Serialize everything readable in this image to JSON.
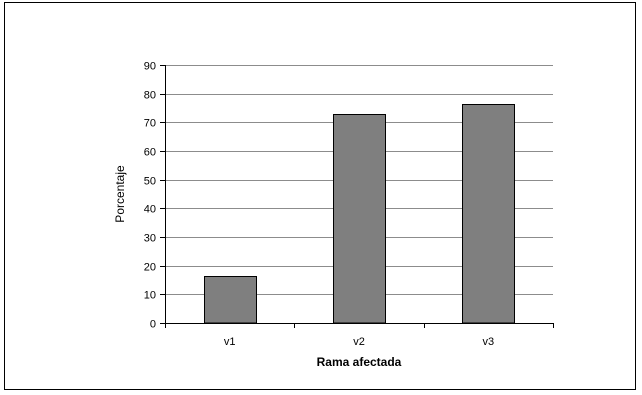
{
  "chart_data": {
    "type": "bar",
    "categories": [
      "v1",
      "v2",
      "v3"
    ],
    "values": [
      16.3,
      72.8,
      76.5
    ],
    "xlabel": "Rama afectada",
    "ylabel": "Porcentaje",
    "ylim": [
      0,
      90
    ],
    "yticks": [
      0,
      10,
      20,
      30,
      40,
      50,
      60,
      70,
      80,
      90
    ],
    "grid": true,
    "legend": "none",
    "colors": {
      "bar_fill": "#7f7f7f",
      "bar_stroke": "#000000",
      "grid": "#8c8c8c",
      "axis": "#000000"
    }
  }
}
